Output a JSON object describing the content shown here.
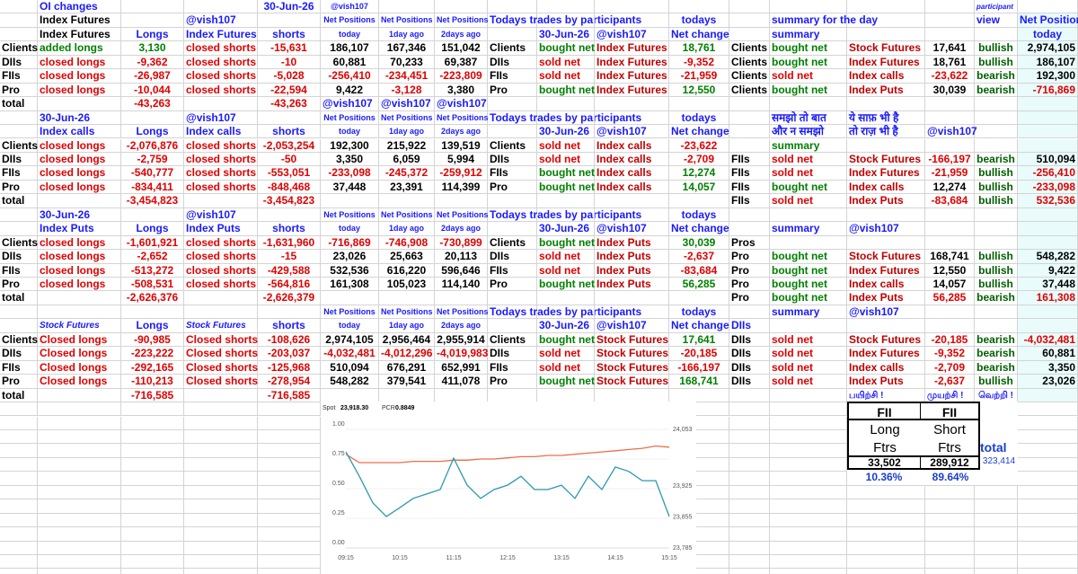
{
  "sheet": {
    "rows": [
      [
        null,
        "OI changes",
        null,
        null,
        "30-Jun-26",
        "@vish107",
        null,
        null,
        null,
        null,
        null,
        null,
        null,
        null,
        null,
        null,
        "participant",
        null
      ],
      [
        null,
        "Index Futures",
        null,
        "@vish107",
        null,
        "Net Positions",
        "Net Positions",
        "Net Positions",
        "Todays trades by participants",
        null,
        null,
        "todays",
        null,
        "summary for the day",
        null,
        null,
        "view",
        "Net Positions"
      ],
      [
        null,
        "Index Futures",
        "Longs",
        "Index Futures",
        "shorts",
        "today",
        "1day ago",
        "2days ago",
        null,
        "30-Jun-26",
        "@vish107",
        "Net change",
        null,
        "summary",
        null,
        null,
        null,
        "today"
      ],
      [
        "Clients",
        "added longs",
        "3,130",
        "closed shorts",
        "-15,631",
        "186,107",
        "167,346",
        "151,042",
        "Clients",
        "bought net",
        "Index Futures",
        "18,761",
        "Clients",
        "bought net",
        "Stock Futures",
        "17,641",
        "bullish",
        "2,974,105"
      ],
      [
        "DIIs",
        "closed longs",
        "-9,362",
        "closed shorts",
        "-10",
        "60,881",
        "70,233",
        "69,387",
        "DIIs",
        "sold net",
        "Index Futures",
        "-9,352",
        "Clients",
        "bought net",
        "Index Futures",
        "18,761",
        "bullish",
        "186,107"
      ],
      [
        "FIIs",
        "closed longs",
        "-26,987",
        "closed shorts",
        "-5,028",
        "-256,410",
        "-234,451",
        "-223,809",
        "FIIs",
        "sold net",
        "Index Futures",
        "-21,959",
        "Clients",
        "sold net",
        "Index calls",
        "-23,622",
        "bearish",
        "192,300"
      ],
      [
        "Pro",
        "closed longs",
        "-10,044",
        "closed shorts",
        "-22,594",
        "9,422",
        "-3,128",
        "3,380",
        "Pro",
        "bought net",
        "Index Futures",
        "12,550",
        "Clients",
        "bought net",
        "Index Puts",
        "30,039",
        "bearish",
        "-716,869"
      ],
      [
        "total",
        null,
        "-43,263",
        null,
        "-43,263",
        "@vish107",
        "@vish107",
        "@vish107",
        null,
        null,
        null,
        null,
        null,
        null,
        null,
        null,
        null,
        null
      ],
      [
        null,
        "30-Jun-26",
        null,
        "@vish107",
        null,
        "Net Positions",
        "Net Positions",
        "Net Positions",
        "Todays trades by participants",
        null,
        null,
        "todays",
        null,
        "समझो तो बात",
        "ये साफ़ भी है",
        null,
        null,
        null
      ],
      [
        null,
        "Index calls",
        "Longs",
        "Index calls",
        "shorts",
        "today",
        "1day ago",
        "2days ago",
        null,
        "30-Jun-26",
        "@vish107",
        "Net change",
        null,
        "और न समझो",
        "तो राज़ भी है",
        "@vish107",
        null,
        null
      ],
      [
        "Clients",
        "closed longs",
        "-2,076,876",
        "closed shorts",
        "-2,053,254",
        "192,300",
        "215,922",
        "139,519",
        "Clients",
        "sold net",
        "Index calls",
        "-23,622",
        null,
        "summary",
        null,
        null,
        null,
        null
      ],
      [
        "DIIs",
        "closed longs",
        "-2,759",
        "closed shorts",
        "-50",
        "3,350",
        "6,059",
        "5,994",
        "DIIs",
        "sold net",
        "Index calls",
        "-2,709",
        "FIIs",
        "sold net",
        "Stock Futures",
        "-166,197",
        "bearish",
        "510,094"
      ],
      [
        "FIIs",
        "closed longs",
        "-540,777",
        "closed shorts",
        "-553,051",
        "-233,098",
        "-245,372",
        "-259,912",
        "FIIs",
        "bought net",
        "Index calls",
        "12,274",
        "FIIs",
        "sold net",
        "Index Futures",
        "-21,959",
        "bullish",
        "-256,410"
      ],
      [
        "Pro",
        "closed longs",
        "-834,411",
        "closed shorts",
        "-848,468",
        "37,448",
        "23,391",
        "114,399",
        "Pro",
        "bought net",
        "Index calls",
        "14,057",
        "FIIs",
        "bought net",
        "Index calls",
        "12,274",
        "bullish",
        "-233,098"
      ],
      [
        "total",
        null,
        "-3,454,823",
        null,
        "-3,454,823",
        null,
        null,
        null,
        null,
        null,
        null,
        null,
        "FIIs",
        "sold net",
        "Index Puts",
        "-83,684",
        "bullish",
        "532,536"
      ],
      [
        null,
        "30-Jun-26",
        null,
        "@vish107",
        null,
        "Net Positions",
        "Net Positions",
        "Net Positions",
        "Todays trades by participants",
        null,
        null,
        "todays",
        null,
        null,
        null,
        null,
        null,
        null
      ],
      [
        null,
        "Index Puts",
        "Longs",
        "Index Puts",
        "shorts",
        "today",
        "1day ago",
        "2days ago",
        null,
        "30-Jun-26",
        "@vish107",
        "Net change",
        null,
        "summary",
        "@vish107",
        null,
        null,
        null
      ],
      [
        "Clients",
        "closed longs",
        "-1,601,921",
        "closed shorts",
        "-1,631,960",
        "-716,869",
        "-746,908",
        "-730,899",
        "Clients",
        "bought net",
        "Index Puts",
        "30,039",
        "Pros",
        null,
        null,
        null,
        null,
        null
      ],
      [
        "DIIs",
        "closed longs",
        "-2,652",
        "closed shorts",
        "-15",
        "23,026",
        "25,663",
        "20,113",
        "DIIs",
        "sold net",
        "Index Puts",
        "-2,637",
        "Pro",
        "bought net",
        "Stock Futures",
        "168,741",
        "bullish",
        "548,282"
      ],
      [
        "FIIs",
        "closed longs",
        "-513,272",
        "closed shorts",
        "-429,588",
        "532,536",
        "616,220",
        "596,646",
        "FIIs",
        "sold net",
        "Index Puts",
        "-83,684",
        "Pro",
        "bought net",
        "Index Futures",
        "12,550",
        "bullish",
        "9,422"
      ],
      [
        "Pro",
        "closed longs",
        "-508,531",
        "closed shorts",
        "-564,816",
        "161,308",
        "105,023",
        "114,140",
        "Pro",
        "bought net",
        "Index Puts",
        "56,285",
        "Pro",
        "bought net",
        "Index calls",
        "14,057",
        "bullish",
        "37,448"
      ],
      [
        "total",
        null,
        "-2,626,376",
        null,
        "-2,626,379",
        null,
        null,
        null,
        null,
        null,
        null,
        null,
        "Pro",
        "bought net",
        "Index Puts",
        "56,285",
        "bearish",
        "161,308"
      ],
      [
        null,
        null,
        null,
        null,
        null,
        "Net Positions",
        "Net Positions",
        "Net Positions",
        "Todays trades by participants",
        null,
        null,
        "todays",
        null,
        "summary",
        "@vish107",
        null,
        null,
        null
      ],
      [
        null,
        "Stock Futures",
        "Longs",
        "Stock Futures",
        "shorts",
        "today",
        "1day ago",
        "2days ago",
        null,
        "30-Jun-26",
        "@vish107",
        "Net change",
        "DIIs",
        null,
        null,
        null,
        null,
        null
      ],
      [
        "Clients",
        "Closed longs",
        "-90,985",
        "Closed shorts",
        "-108,626",
        "2,974,105",
        "2,956,464",
        "2,955,914",
        "Clients",
        "bought net",
        "Stock Futures",
        "17,641",
        "DIIs",
        "sold net",
        "Stock Futures",
        "-20,185",
        "bearish",
        "-4,032,481"
      ],
      [
        "DIIs",
        "Closed longs",
        "-223,222",
        "Closed shorts",
        "-203,037",
        "-4,032,481",
        "-4,012,296",
        "-4,019,983",
        "DIIs",
        "sold net",
        "Stock Futures",
        "-20,185",
        "DIIs",
        "sold net",
        "Index Futures",
        "-9,352",
        "bearish",
        "60,881"
      ],
      [
        "FIIs",
        "Closed longs",
        "-292,165",
        "Closed shorts",
        "-125,968",
        "510,094",
        "676,291",
        "652,991",
        "FIIs",
        "sold net",
        "Stock Futures",
        "-166,197",
        "DIIs",
        "sold net",
        "Index calls",
        "-2,709",
        "bearish",
        "3,350"
      ],
      [
        "Pro",
        "Closed longs",
        "-110,213",
        "Closed shorts",
        "-278,954",
        "548,282",
        "379,541",
        "411,078",
        "Pro",
        "bought net",
        "Stock Futures",
        "168,741",
        "DIIs",
        "sold net",
        "Index Puts",
        "-2,637",
        "bullish",
        "23,026"
      ],
      [
        "total",
        null,
        "-716,585",
        null,
        "-716,585",
        null,
        null,
        null,
        null,
        null,
        null,
        null,
        null,
        null,
        "பயிற்சி !",
        "முயற்சி !",
        "வெற்றி !",
        null
      ]
    ]
  },
  "fii_box": {
    "header": [
      "FII",
      "FII"
    ],
    "row1": [
      "Long",
      "Short"
    ],
    "row2": [
      "Ftrs",
      "Ftrs"
    ],
    "total_label": "total",
    "values": [
      "33,502",
      "289,912"
    ],
    "total": "323,414",
    "percents": [
      "10.36%",
      "89.64%"
    ]
  },
  "chart_data": {
    "type": "line",
    "annotations": [
      "Spot",
      "23,918.30",
      "PCR",
      "0.8849"
    ],
    "categories": [
      "09:15",
      null,
      null,
      null,
      "10:15",
      null,
      null,
      null,
      "11:15",
      null,
      null,
      null,
      "12:15",
      null,
      null,
      null,
      "13:15",
      null,
      null,
      null,
      "14:15",
      null,
      null,
      null,
      "15:15"
    ],
    "series": [
      {
        "name": "PCR",
        "color": "#e8704a",
        "values": [
          0.79,
          0.72,
          0.72,
          0.72,
          0.72,
          0.73,
          0.73,
          0.73,
          0.74,
          0.74,
          0.75,
          0.75,
          0.76,
          0.77,
          0.77,
          0.78,
          0.78,
          0.79,
          0.8,
          0.81,
          0.82,
          0.83,
          0.84,
          0.86,
          0.85
        ]
      },
      {
        "name": "Spot",
        "color": "#2b9aab",
        "axis": "y2",
        "values": [
          24002,
          23947,
          23887,
          23856,
          23876,
          23897,
          23907,
          23917,
          23988,
          23927,
          23897,
          23917,
          23927,
          23947,
          23917,
          23917,
          23927,
          23897,
          23947,
          23917,
          23968,
          23958,
          23937,
          23937,
          23856
        ]
      }
    ],
    "ylim": [
      0,
      1
    ],
    "yticks": [
      {
        "value": 0,
        "label": "0.00"
      },
      0.25,
      {
        "value": 0.5,
        "label": "0.50"
      },
      0.75,
      {
        "value": 1,
        "label": "1.00"
      }
    ],
    "y2lim": [
      23785,
      24053
    ],
    "y2ticks": [
      {
        "value": 23785,
        "label": "23,785"
      },
      {
        "value": 23855,
        "label": "23,855"
      },
      {
        "value": 23925,
        "label": "23,925"
      },
      {
        "value": 24053,
        "label": "24,053"
      }
    ],
    "grid": true
  }
}
